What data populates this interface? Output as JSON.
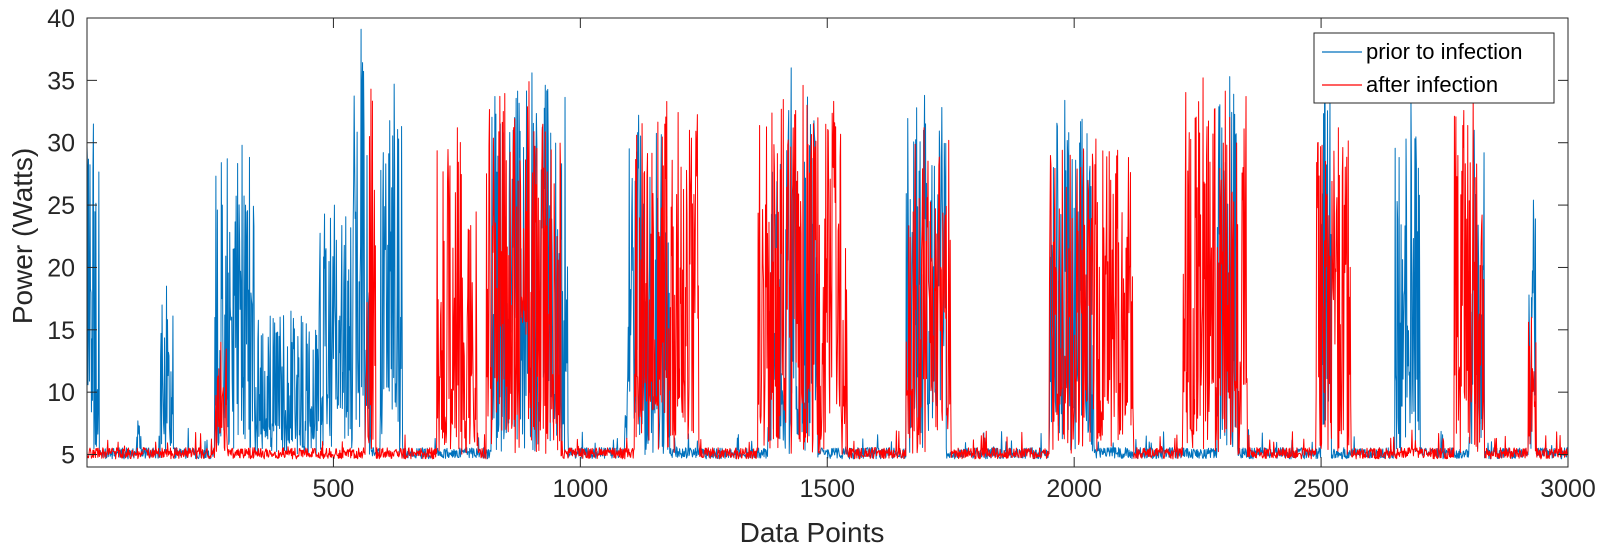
{
  "chart_data": {
    "type": "line",
    "title": "",
    "xlabel": "Data Points",
    "ylabel": "Power (Watts)",
    "xlim": [
      1,
      3000
    ],
    "ylim": [
      4,
      40
    ],
    "xticks": [
      500,
      1000,
      1500,
      2000,
      2500,
      3000
    ],
    "xtick_labels": [
      "500",
      "1000",
      "1500",
      "2000",
      "2500",
      "3000"
    ],
    "yticks": [
      5,
      10,
      15,
      20,
      25,
      30,
      35,
      40
    ],
    "ytick_labels": [
      "5",
      "10",
      "15",
      "20",
      "25",
      "30",
      "35",
      "40"
    ],
    "grid": false,
    "legend_location": "top-right",
    "baseline": 5,
    "series": [
      {
        "name": "prior to infection",
        "color": "#0072BD",
        "bursts": [
          {
            "start": 1,
            "end": 25,
            "peak": 31.5
          },
          {
            "start": 100,
            "end": 110,
            "peak": 7.7
          },
          {
            "start": 150,
            "end": 175,
            "peak": 18.5
          },
          {
            "start": 260,
            "end": 340,
            "peak": 29.8
          },
          {
            "start": 340,
            "end": 470,
            "peak": 16.5
          },
          {
            "start": 470,
            "end": 540,
            "peak": 25
          },
          {
            "start": 540,
            "end": 575,
            "peak": 39.1
          },
          {
            "start": 595,
            "end": 640,
            "peak": 34.7
          },
          {
            "start": 820,
            "end": 975,
            "peak": 35.6
          },
          {
            "start": 1090,
            "end": 1180,
            "peak": 32.2
          },
          {
            "start": 1380,
            "end": 1480,
            "peak": 36
          },
          {
            "start": 1660,
            "end": 1740,
            "peak": 33.8
          },
          {
            "start": 1950,
            "end": 2040,
            "peak": 33.4
          },
          {
            "start": 2290,
            "end": 2330,
            "peak": 35.3
          },
          {
            "start": 2500,
            "end": 2520,
            "peak": 35.2
          },
          {
            "start": 2650,
            "end": 2700,
            "peak": 33.5
          },
          {
            "start": 2800,
            "end": 2830,
            "peak": 31
          },
          {
            "start": 2920,
            "end": 2935,
            "peak": 25.4
          }
        ]
      },
      {
        "name": "after infection",
        "color": "#FF0000",
        "bursts": [
          {
            "start": 260,
            "end": 285,
            "peak": 14
          },
          {
            "start": 565,
            "end": 585,
            "peak": 34.3
          },
          {
            "start": 710,
            "end": 790,
            "peak": 31.2
          },
          {
            "start": 810,
            "end": 960,
            "peak": 34.9
          },
          {
            "start": 1110,
            "end": 1240,
            "peak": 33.3
          },
          {
            "start": 1360,
            "end": 1540,
            "peak": 34.6
          },
          {
            "start": 1660,
            "end": 1750,
            "peak": 31.2
          },
          {
            "start": 1950,
            "end": 2120,
            "peak": 30.3
          },
          {
            "start": 2220,
            "end": 2350,
            "peak": 35.2
          },
          {
            "start": 2490,
            "end": 2560,
            "peak": 31.2
          },
          {
            "start": 2770,
            "end": 2830,
            "peak": 33.8
          },
          {
            "start": 2920,
            "end": 2935,
            "peak": 16
          }
        ]
      }
    ]
  }
}
